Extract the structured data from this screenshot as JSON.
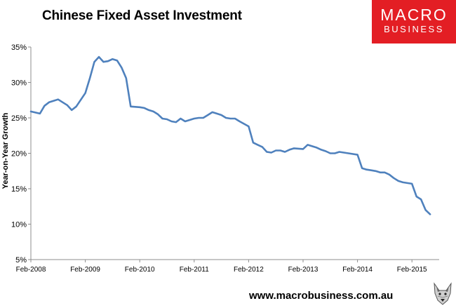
{
  "header": {
    "title": "Chinese Fixed Asset Investment"
  },
  "logo": {
    "line1": "MACRO",
    "line2": "BUSINESS",
    "color": "#e31e24"
  },
  "footer": {
    "url": "www.macrobusiness.com.au"
  },
  "wolf_icon": "wolf-head-icon",
  "chart_data": {
    "type": "line",
    "title": "Chinese Fixed Asset Investment",
    "xlabel": "",
    "ylabel": "Year-on-Year Growth",
    "ylim": [
      5,
      35
    ],
    "yticks": [
      "5%",
      "10%",
      "15%",
      "20%",
      "25%",
      "30%",
      "35%"
    ],
    "xticks": [
      "Feb-2008",
      "Feb-2009",
      "Feb-2010",
      "Feb-2011",
      "Feb-2012",
      "Feb-2013",
      "Feb-2014",
      "Feb-2015"
    ],
    "grid": false,
    "legend": "none",
    "line_color": "#4f81bd",
    "series": [
      {
        "x": [
          "Feb-2008",
          "Apr-2008",
          "May-2008",
          "Jun-2008",
          "Jul-2008",
          "Aug-2008",
          "Sep-2008",
          "Oct-2008",
          "Nov-2008",
          "Dec-2008",
          "Feb-2009",
          "Mar-2009",
          "Apr-2009",
          "May-2009",
          "Jun-2009",
          "Jul-2009",
          "Aug-2009",
          "Sep-2009",
          "Oct-2009",
          "Nov-2009",
          "Dec-2009",
          "Feb-2010",
          "Mar-2010",
          "Apr-2010",
          "May-2010",
          "Jun-2010",
          "Jul-2010",
          "Aug-2010",
          "Sep-2010",
          "Oct-2010",
          "Nov-2010",
          "Dec-2010",
          "Feb-2011",
          "Mar-2011",
          "Apr-2011",
          "May-2011",
          "Jun-2011",
          "Jul-2011",
          "Aug-2011",
          "Sep-2011",
          "Oct-2011",
          "Nov-2011",
          "Dec-2011",
          "Feb-2012",
          "Mar-2012",
          "Apr-2012",
          "May-2012",
          "Jun-2012",
          "Jul-2012",
          "Aug-2012",
          "Sep-2012",
          "Oct-2012",
          "Nov-2012",
          "Dec-2012",
          "Feb-2013",
          "Mar-2013",
          "Apr-2013",
          "May-2013",
          "Jun-2013",
          "Jul-2013",
          "Aug-2013",
          "Sep-2013",
          "Oct-2013",
          "Nov-2013",
          "Dec-2013",
          "Feb-2014",
          "Mar-2014",
          "Apr-2014",
          "May-2014",
          "Jun-2014",
          "Jul-2014",
          "Aug-2014",
          "Sep-2014",
          "Oct-2014",
          "Nov-2014",
          "Dec-2014",
          "Feb-2015",
          "Mar-2015",
          "Apr-2015",
          "May-2015",
          "Jun-2015"
        ],
        "values": [
          25.9,
          25.6,
          26.7,
          27.2,
          27.4,
          27.6,
          27.2,
          26.8,
          26.1,
          26.6,
          28.5,
          30.6,
          32.9,
          33.6,
          32.9,
          33.0,
          33.3,
          33.1,
          32.1,
          30.6,
          26.6,
          26.5,
          26.4,
          26.1,
          25.9,
          25.5,
          24.9,
          24.8,
          24.5,
          24.4,
          24.9,
          24.5,
          24.9,
          25.0,
          25.0,
          25.4,
          25.8,
          25.6,
          25.4,
          25.0,
          24.9,
          24.9,
          24.5,
          23.8,
          21.5,
          21.2,
          20.9,
          20.2,
          20.1,
          20.4,
          20.4,
          20.2,
          20.5,
          20.7,
          20.6,
          21.2,
          21.0,
          20.8,
          20.5,
          20.3,
          20.0,
          20.0,
          20.2,
          20.1,
          20.0,
          19.8,
          17.9,
          17.7,
          17.6,
          17.5,
          17.3,
          17.3,
          17.0,
          16.5,
          16.1,
          15.9,
          15.7,
          13.9,
          13.5,
          12.0,
          11.4
        ]
      }
    ]
  }
}
